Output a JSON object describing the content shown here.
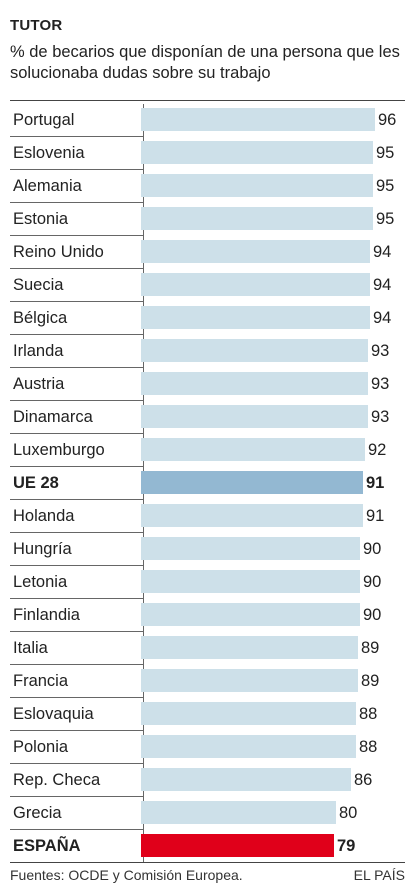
{
  "chart_data": {
    "type": "bar",
    "orientation": "horizontal",
    "title": "TUTOR",
    "subtitle": "% de becarios que disponían de una persona que les solucionaba dudas sobre su trabajo",
    "categories": [
      "Portugal",
      "Eslovenia",
      "Alemania",
      "Estonia",
      "Reino Unido",
      "Suecia",
      "Bélgica",
      "Irlanda",
      "Austria",
      "Dinamarca",
      "Luxemburgo",
      "UE 28",
      "Holanda",
      "Hungría",
      "Letonia",
      "Finlandia",
      "Italia",
      "Francia",
      "Eslovaquia",
      "Polonia",
      "Rep. Checa",
      "Grecia",
      "ESPAÑA"
    ],
    "values": [
      96,
      95,
      95,
      95,
      94,
      94,
      94,
      93,
      93,
      93,
      92,
      91,
      91,
      90,
      90,
      90,
      89,
      89,
      88,
      88,
      86,
      80,
      79
    ],
    "value_labels": [
      "96",
      "95",
      "95",
      "95",
      "94",
      "94",
      "94",
      "93",
      "93",
      "93",
      "92",
      "91",
      "91",
      "90",
      "90",
      "90",
      "89",
      "89",
      "88",
      "88",
      "86",
      "80",
      "79"
    ],
    "highlights": {
      "UE 28": "#93b8d2",
      "ESPAÑA": "#e0001a"
    },
    "bar_color": "#cde0e9",
    "xlim": [
      0,
      96
    ],
    "grid": false
  },
  "footer": {
    "source": "Fuentes: OCDE y Comisión Europea.",
    "brand": "EL PAÍS"
  }
}
